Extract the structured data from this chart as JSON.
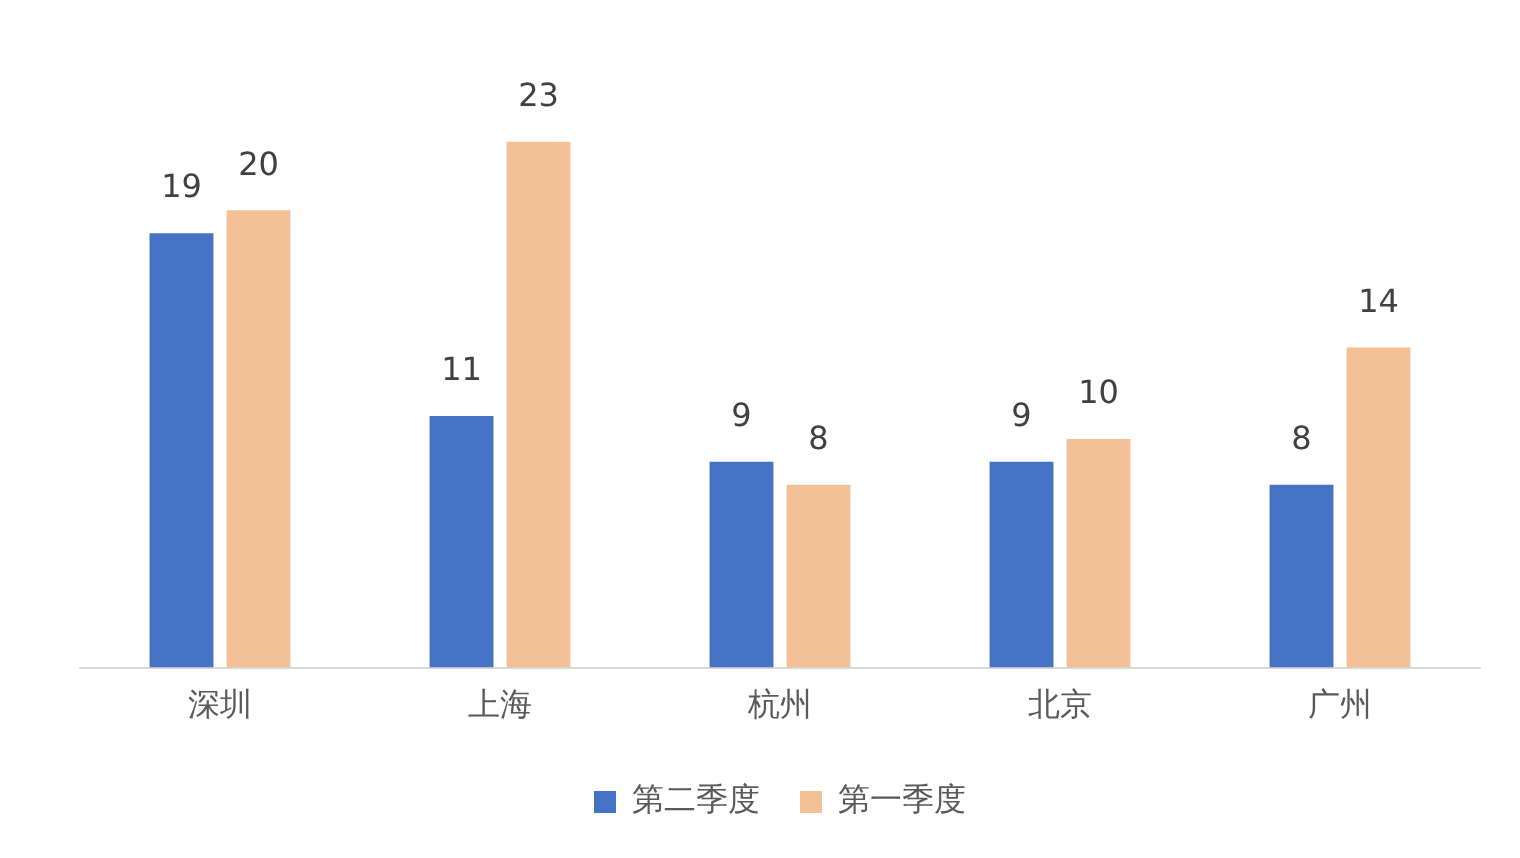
{
  "chart_data": {
    "type": "bar",
    "categories": [
      "深圳",
      "上海",
      "杭州",
      "北京",
      "广州"
    ],
    "series": [
      {
        "name": "第二季度",
        "color": "#4472c4",
        "values": [
          19,
          11,
          9,
          9,
          8
        ]
      },
      {
        "name": "第一季度",
        "color": "#f4c095",
        "values": [
          20,
          23,
          8,
          10,
          14
        ]
      }
    ],
    "data_labels": true,
    "legend": "bottom",
    "grid": false
  }
}
